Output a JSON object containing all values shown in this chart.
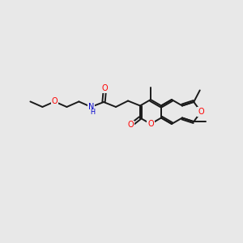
{
  "background_color": "#E8E8E8",
  "figsize": [
    3.0,
    3.0
  ],
  "dpi": 100,
  "bond_color": "#1a1a1a",
  "bond_lw": 1.4,
  "atom_colors": {
    "O": "#FF0000",
    "N": "#0000CC",
    "C": "#1a1a1a"
  },
  "fs": 7.0
}
